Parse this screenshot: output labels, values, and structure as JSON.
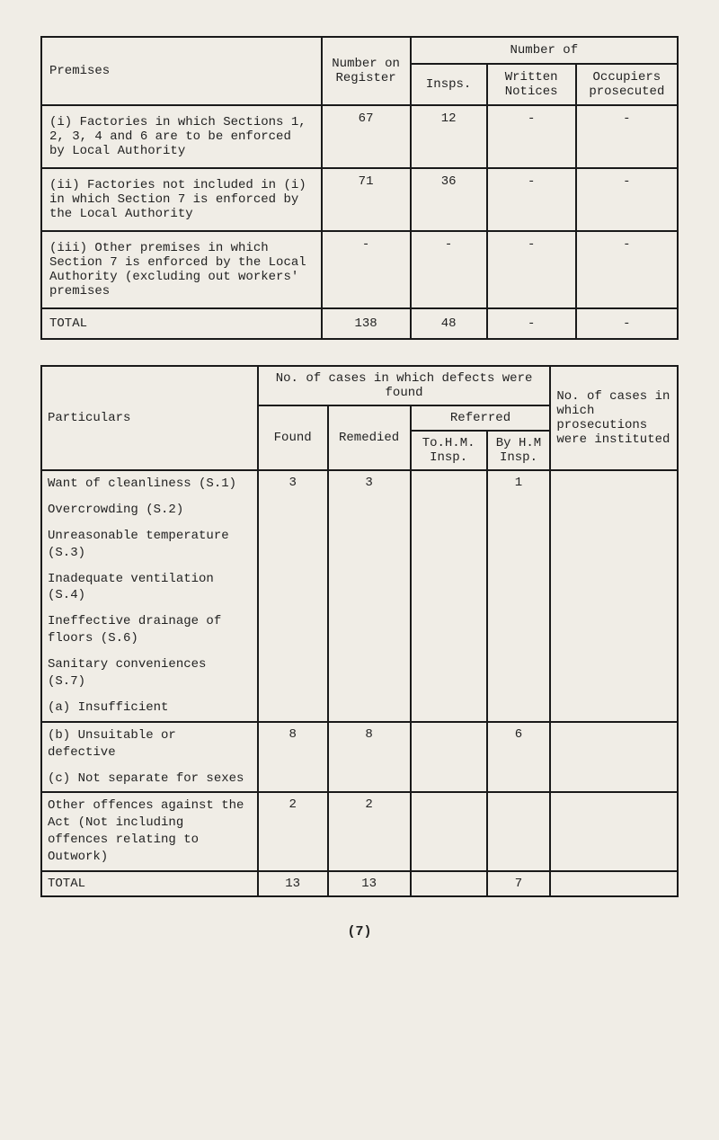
{
  "table1": {
    "header": {
      "premises": "Premises",
      "numberOn": "Number on Register",
      "numberOf": "Number of",
      "insps": "Insps.",
      "written": "Written Notices",
      "occupiers": "Occupiers prosecuted"
    },
    "rows": [
      {
        "label": "(i)  Factories in which Sections 1, 2, 3, 4 and 6 are to be enforced by Local Authority",
        "reg": "67",
        "insps": "12",
        "written": "-",
        "occup": "-"
      },
      {
        "label": "(ii) Factories not included in (i) in which Section 7 is enforced by the Local Authority",
        "reg": "71",
        "insps": "36",
        "written": "-",
        "occup": "-"
      },
      {
        "label": "(iii) Other premises in which Section 7 is enforced by the Local Authority (excluding out workers' premises",
        "reg": "-",
        "insps": "-",
        "written": "-",
        "occup": "-"
      }
    ],
    "total": {
      "label": "TOTAL",
      "reg": "138",
      "insps": "48",
      "written": "-",
      "occup": "-"
    }
  },
  "table2": {
    "header": {
      "particulars": "Particulars",
      "casesFound": "No. of cases in which defects were found",
      "found": "Found",
      "remedied": "Remedied",
      "referred": "Referred",
      "tohm": "To.H.M. Insp.",
      "byhm": "By H.M Insp.",
      "nocases": "No. of cases in which prosecutions were instituted"
    },
    "items": [
      "Want of cleanliness (S.1)",
      "Overcrowding (S.2)",
      "Unreasonable temperature (S.3)",
      "Inadequate ventilation (S.4)",
      "Ineffective drainage of floors (S.6)",
      "Sanitary conveniences (S.7)",
      "(a) Insufficient",
      "(b) Unsuitable or defective",
      "(c) Not separate for sexes",
      "Other offences against the Act (Not including offences relating to Outwork)"
    ],
    "group1": {
      "found": "3",
      "remedied": "3",
      "tohm": "",
      "byhm": "1",
      "nocases": ""
    },
    "group2": {
      "found": "8",
      "remedied": "8",
      "tohm": "",
      "byhm": "6",
      "nocases": ""
    },
    "group3": {
      "found": "2",
      "remedied": "2",
      "tohm": "",
      "byhm": "",
      "nocases": ""
    },
    "total": {
      "label": "TOTAL",
      "found": "13",
      "remedied": "13",
      "tohm": "",
      "byhm": "7",
      "nocases": ""
    }
  },
  "pageNum": "(7)"
}
